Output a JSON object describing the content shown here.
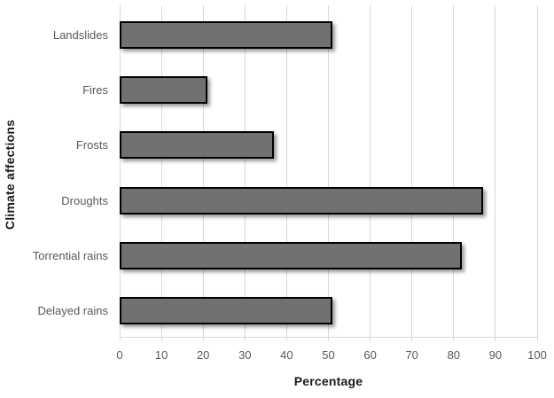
{
  "chart_data": {
    "type": "bar",
    "orientation": "horizontal",
    "title": "",
    "xlabel": "Percentage",
    "ylabel": "Climate affections",
    "categories": [
      "Landslides",
      "Fires",
      "Frosts",
      "Droughts",
      "Torrential rains",
      "Delayed rains"
    ],
    "values": [
      51,
      21,
      37,
      87,
      82,
      51
    ],
    "xlim": [
      0,
      100
    ],
    "xticks": [
      0,
      10,
      20,
      30,
      40,
      50,
      60,
      70,
      80,
      90,
      100
    ],
    "grid": "vertical-only",
    "legend_position": "none",
    "colors": {
      "bar_fill": "#737070",
      "bar_border": "#000000",
      "gridline": "#d9d9d9",
      "axis_line": "#d9d9d9",
      "tick_mark": "#d9d9d9",
      "tick_label": "#595959",
      "category_label": "#595959",
      "axis_title": "#1a1a1a",
      "background": "#ffffff"
    }
  }
}
